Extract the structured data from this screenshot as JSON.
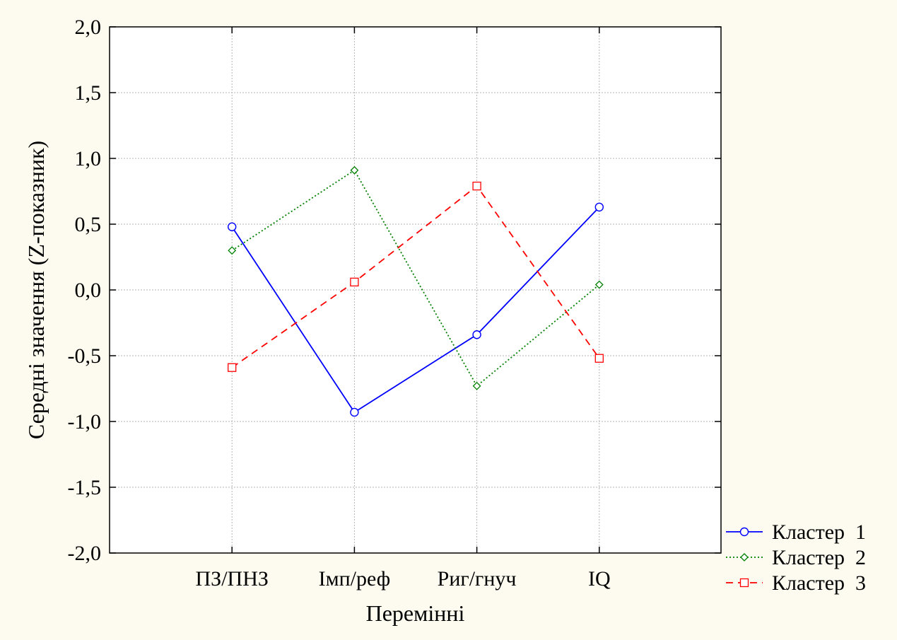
{
  "chart_data": {
    "type": "line",
    "xlabel": "Перемінні",
    "ylabel": "Середні значення (Z-показник)",
    "categories": [
      "ПЗ/ПНЗ",
      "Імп/реф",
      "Риг/гнуч",
      "IQ"
    ],
    "ylim": [
      -2.0,
      2.0
    ],
    "yticks": [
      "-2,0",
      "-1,5",
      "-1,0",
      "-0,5",
      "0,0",
      "0,5",
      "1,0",
      "1,5",
      "2,0"
    ],
    "grid": true,
    "legend_position": "bottom-right",
    "series": [
      {
        "name": "Кластер  1",
        "values": [
          0.48,
          -0.93,
          -0.34,
          0.63
        ],
        "color": "#0000ff",
        "line_style": "solid",
        "marker": "circle"
      },
      {
        "name": "Кластер  2",
        "values": [
          0.3,
          0.91,
          -0.73,
          0.04
        ],
        "color": "#008000",
        "line_style": "dotted",
        "marker": "diamond"
      },
      {
        "name": "Кластер  3",
        "values": [
          -0.59,
          0.06,
          0.79,
          -0.52
        ],
        "color": "#ff0000",
        "line_style": "dashed",
        "marker": "square"
      }
    ]
  }
}
